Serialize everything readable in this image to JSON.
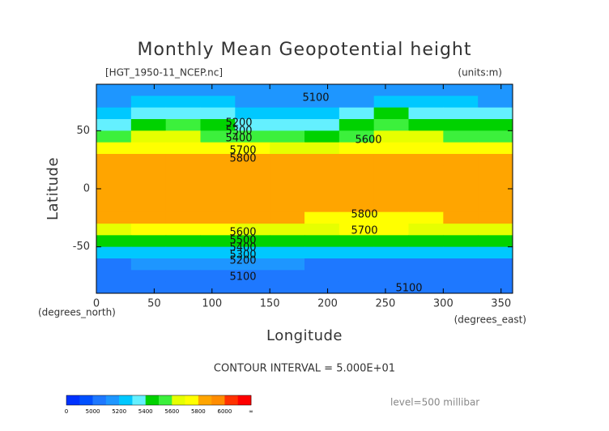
{
  "chart_data": {
    "type": "contour",
    "title": "Monthly Mean Geopotential height",
    "subtitle": "[HGT_1950-11_NCEP.nc]",
    "units": "(units:m)",
    "x_label": "Longitude",
    "y_label": "Latitude",
    "x_unit": "(degrees_east)",
    "y_unit": "(degrees_north)",
    "note": "CONTOUR INTERVAL = 5.000E+01",
    "level": "level=500 millibar",
    "xlim": [
      0,
      360
    ],
    "ylim": [
      -90,
      90
    ],
    "xticks": [
      0,
      50,
      100,
      150,
      200,
      250,
      300,
      350
    ],
    "yticks": [
      -50,
      0,
      50
    ],
    "x": [
      15,
      45,
      75,
      105,
      135,
      165,
      195,
      225,
      255,
      285,
      315,
      345
    ],
    "y": [
      85,
      75,
      65,
      55,
      45,
      35,
      25,
      15,
      5,
      -5,
      -15,
      -25,
      -35,
      -45,
      -55,
      -65,
      -75,
      -85
    ],
    "z": [
      [
        5120,
        5130,
        5130,
        5120,
        5110,
        5100,
        5100,
        5110,
        5120,
        5130,
        5130,
        5120
      ],
      [
        5180,
        5220,
        5230,
        5220,
        5180,
        5150,
        5150,
        5180,
        5230,
        5250,
        5220,
        5190
      ],
      [
        5280,
        5350,
        5380,
        5330,
        5280,
        5250,
        5240,
        5300,
        5400,
        5380,
        5320,
        5300
      ],
      [
        5380,
        5470,
        5500,
        5420,
        5380,
        5350,
        5320,
        5420,
        5520,
        5480,
        5420,
        5400
      ],
      [
        5560,
        5620,
        5650,
        5580,
        5520,
        5500,
        5480,
        5560,
        5650,
        5620,
        5560,
        5540
      ],
      [
        5720,
        5750,
        5760,
        5720,
        5700,
        5690,
        5680,
        5720,
        5760,
        5760,
        5720,
        5710
      ],
      [
        5830,
        5840,
        5850,
        5840,
        5830,
        5820,
        5820,
        5830,
        5840,
        5840,
        5830,
        5830
      ],
      [
        5870,
        5880,
        5880,
        5880,
        5870,
        5870,
        5870,
        5870,
        5870,
        5870,
        5870,
        5870
      ],
      [
        5880,
        5890,
        5890,
        5890,
        5880,
        5880,
        5880,
        5880,
        5880,
        5880,
        5880,
        5880
      ],
      [
        5880,
        5890,
        5890,
        5890,
        5880,
        5880,
        5880,
        5880,
        5880,
        5880,
        5880,
        5880
      ],
      [
        5870,
        5870,
        5870,
        5870,
        5860,
        5860,
        5860,
        5860,
        5860,
        5860,
        5870,
        5870
      ],
      [
        5810,
        5820,
        5820,
        5820,
        5800,
        5800,
        5790,
        5790,
        5780,
        5790,
        5800,
        5810
      ],
      [
        5690,
        5700,
        5710,
        5700,
        5680,
        5680,
        5690,
        5700,
        5700,
        5690,
        5690,
        5690
      ],
      [
        5440,
        5450,
        5460,
        5450,
        5430,
        5430,
        5440,
        5460,
        5460,
        5450,
        5440,
        5440
      ],
      [
        5230,
        5240,
        5260,
        5250,
        5230,
        5220,
        5230,
        5250,
        5250,
        5240,
        5230,
        5230
      ],
      [
        5090,
        5100,
        5110,
        5120,
        5110,
        5100,
        5090,
        5090,
        5080,
        5080,
        5080,
        5090
      ],
      [
        5050,
        5060,
        5080,
        5090,
        5080,
        5060,
        5040,
        5030,
        5030,
        5040,
        5050,
        5050
      ],
      [
        5080,
        5080,
        5080,
        5080,
        5080,
        5070,
        5070,
        5070,
        5070,
        5070,
        5080,
        5080
      ]
    ],
    "levels": [
      4900,
      5000,
      5100,
      5200,
      5300,
      5400,
      5500,
      5600,
      5700,
      5800,
      5900,
      6000,
      6100
    ],
    "colors": [
      "#0032ff",
      "#0050ff",
      "#1e78ff",
      "#1e96ff",
      "#00c8ff",
      "#64f0ff",
      "#00d200",
      "#3cf03c",
      "#e6ff00",
      "#ffff00",
      "#ffa500",
      "#ff8c00",
      "#ff3200",
      "#ff0000"
    ],
    "colorbar_ticks": [
      0,
      5000,
      5200,
      5400,
      5600,
      5800,
      6000
    ],
    "colorbar_end_label": "∞",
    "contour_labels": [
      5100,
      5200,
      5300,
      5400,
      5600,
      5700,
      5800,
      5800,
      5700,
      5600,
      5500,
      5400,
      5300,
      5200,
      5100,
      5100
    ]
  }
}
